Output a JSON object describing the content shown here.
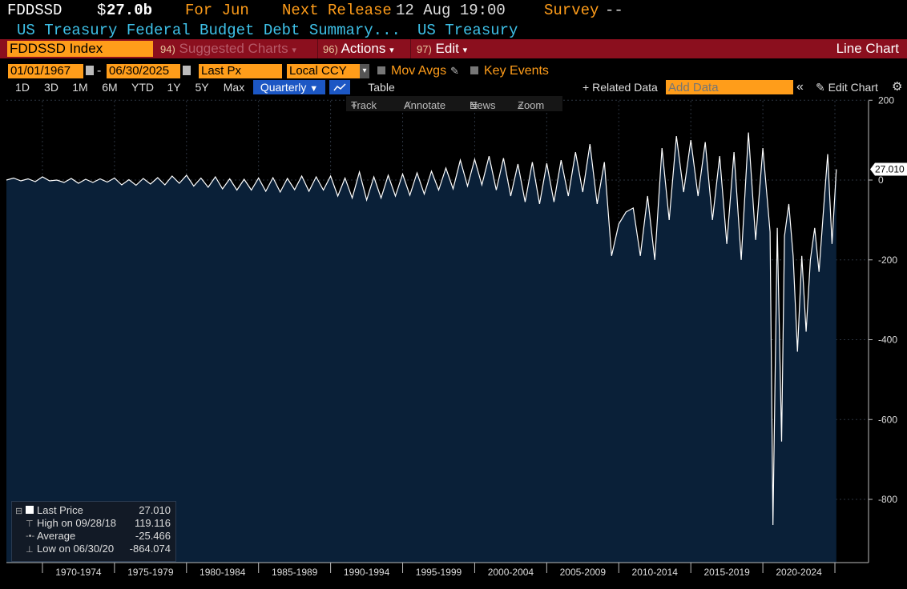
{
  "header": {
    "ticker": "FDDSSD",
    "price_dollar": "$",
    "price_value": "27.0b",
    "period": "For Jun",
    "next_release_label": "Next Release",
    "next_release_value": "12 Aug 19:00",
    "survey_label": "Survey",
    "survey_value": "--",
    "description": "US Treasury Federal Budget Debt Summary...",
    "source": "US Treasury"
  },
  "toolbar": {
    "security": "FDDSSD Index",
    "suggested_num": "94)",
    "suggested_label": "Suggested Charts",
    "actions_num": "96)",
    "actions_label": "Actions",
    "edit_num": "97)",
    "edit_label": "Edit",
    "chart_type": "Line Chart"
  },
  "controls": {
    "start_date": "01/01/1967",
    "date_sep": "-",
    "end_date": "06/30/2025",
    "field": "Last Px",
    "currency": "Local CCY",
    "mov_avgs": "Mov Avgs",
    "key_events": "Key Events"
  },
  "ranges": {
    "buttons": [
      "1D",
      "3D",
      "1M",
      "6M",
      "YTD",
      "1Y",
      "5Y",
      "Max"
    ],
    "frequency": "Quarterly",
    "table": "Table",
    "related": "Related Data",
    "add_data_placeholder": "Add Data",
    "edit_chart": "Edit Chart"
  },
  "chart_tools": {
    "track": "Track",
    "annotate": "Annotate",
    "news": "News",
    "zoom": "Zoom"
  },
  "legend": {
    "last_label": "Last Price",
    "last_value": "27.010",
    "high_label": "High on 09/28/18",
    "high_value": "119.116",
    "avg_label": "Average",
    "avg_value": "-25.466",
    "low_label": "Low on 06/30/20",
    "low_value": "-864.074"
  },
  "colors": {
    "background": "#000000",
    "plot_fill": "#0a2038",
    "line": "#ffffff",
    "accent_orange": "#ff9d1a",
    "header_cyan": "#3ec1e8",
    "toolbar_red": "#8b0f1e"
  },
  "chart_data": {
    "type": "area",
    "title": "",
    "xlabel": "",
    "ylabel": "",
    "x_start": 1967,
    "x_end": 2025.5,
    "ylim": [
      -950,
      200
    ],
    "yticks": [
      200,
      0,
      -200,
      -400,
      -600,
      -800
    ],
    "x_categories": [
      "1970-1974",
      "1975-1979",
      "1980-1984",
      "1985-1989",
      "1990-1994",
      "1995-1999",
      "2000-2004",
      "2005-2009",
      "2010-2014",
      "2015-2019",
      "2020-2024"
    ],
    "last_value_label": "27.010",
    "series": [
      {
        "points": [
          [
            1967.0,
            0
          ],
          [
            1967.5,
            5
          ],
          [
            1968.0,
            -2
          ],
          [
            1968.5,
            3
          ],
          [
            1969.0,
            -4
          ],
          [
            1969.5,
            8
          ],
          [
            1970.0,
            -2
          ],
          [
            1970.5,
            0
          ],
          [
            1971.0,
            -6
          ],
          [
            1971.5,
            4
          ],
          [
            1972.0,
            -8
          ],
          [
            1972.5,
            2
          ],
          [
            1973.0,
            -6
          ],
          [
            1973.5,
            3
          ],
          [
            1974.0,
            -5
          ],
          [
            1974.5,
            5
          ],
          [
            1975.0,
            -12
          ],
          [
            1975.5,
            1
          ],
          [
            1976.0,
            -13
          ],
          [
            1976.5,
            4
          ],
          [
            1977.0,
            -10
          ],
          [
            1977.5,
            6
          ],
          [
            1978.0,
            -12
          ],
          [
            1978.5,
            10
          ],
          [
            1979.0,
            -8
          ],
          [
            1979.5,
            12
          ],
          [
            1980.0,
            -15
          ],
          [
            1980.5,
            5
          ],
          [
            1981.0,
            -18
          ],
          [
            1981.5,
            8
          ],
          [
            1982.0,
            -22
          ],
          [
            1982.5,
            3
          ],
          [
            1983.0,
            -25
          ],
          [
            1983.5,
            2
          ],
          [
            1984.0,
            -25
          ],
          [
            1984.5,
            5
          ],
          [
            1985.0,
            -28
          ],
          [
            1985.5,
            6
          ],
          [
            1986.0,
            -30
          ],
          [
            1986.5,
            4
          ],
          [
            1987.0,
            -24
          ],
          [
            1987.5,
            10
          ],
          [
            1988.0,
            -28
          ],
          [
            1988.5,
            8
          ],
          [
            1989.0,
            -25
          ],
          [
            1989.5,
            10
          ],
          [
            1990.0,
            -40
          ],
          [
            1990.5,
            5
          ],
          [
            1991.0,
            -45
          ],
          [
            1991.5,
            20
          ],
          [
            1992.0,
            -50
          ],
          [
            1992.5,
            8
          ],
          [
            1993.0,
            -45
          ],
          [
            1993.5,
            12
          ],
          [
            1994.0,
            -40
          ],
          [
            1994.5,
            15
          ],
          [
            1995.0,
            -38
          ],
          [
            1995.5,
            18
          ],
          [
            1996.0,
            -35
          ],
          [
            1996.5,
            22
          ],
          [
            1997.0,
            -25
          ],
          [
            1997.5,
            30
          ],
          [
            1998.0,
            -22
          ],
          [
            1998.5,
            50
          ],
          [
            1999.0,
            -15
          ],
          [
            1999.5,
            52
          ],
          [
            2000.0,
            -12
          ],
          [
            2000.5,
            60
          ],
          [
            2001.0,
            -25
          ],
          [
            2001.5,
            55
          ],
          [
            2002.0,
            -40
          ],
          [
            2002.5,
            40
          ],
          [
            2003.0,
            -55
          ],
          [
            2003.5,
            45
          ],
          [
            2004.0,
            -60
          ],
          [
            2004.5,
            42
          ],
          [
            2005.0,
            -55
          ],
          [
            2005.5,
            50
          ],
          [
            2006.0,
            -40
          ],
          [
            2006.5,
            70
          ],
          [
            2007.0,
            -30
          ],
          [
            2007.5,
            90
          ],
          [
            2008.0,
            -60
          ],
          [
            2008.5,
            45
          ],
          [
            2009.0,
            -190
          ],
          [
            2009.5,
            -110
          ],
          [
            2010.0,
            -80
          ],
          [
            2010.5,
            -70
          ],
          [
            2011.0,
            -190
          ],
          [
            2011.5,
            -40
          ],
          [
            2012.0,
            -200
          ],
          [
            2012.5,
            80
          ],
          [
            2013.0,
            -100
          ],
          [
            2013.5,
            110
          ],
          [
            2014.0,
            -30
          ],
          [
            2014.5,
            100
          ],
          [
            2015.0,
            -40
          ],
          [
            2015.5,
            95
          ],
          [
            2016.0,
            -100
          ],
          [
            2016.5,
            60
          ],
          [
            2017.0,
            -160
          ],
          [
            2017.5,
            70
          ],
          [
            2018.0,
            -200
          ],
          [
            2018.5,
            119.116
          ],
          [
            2019.0,
            -150
          ],
          [
            2019.5,
            80
          ],
          [
            2020.0,
            -130
          ],
          [
            2020.2,
            -864.074
          ],
          [
            2020.5,
            -120
          ],
          [
            2020.8,
            -655
          ],
          [
            2021.0,
            -140
          ],
          [
            2021.3,
            -60
          ],
          [
            2021.6,
            -190
          ],
          [
            2021.9,
            -430
          ],
          [
            2022.2,
            -190
          ],
          [
            2022.5,
            -380
          ],
          [
            2022.8,
            -200
          ],
          [
            2023.1,
            -120
          ],
          [
            2023.4,
            -230
          ],
          [
            2023.7,
            -80
          ],
          [
            2024.0,
            65
          ],
          [
            2024.3,
            -160
          ],
          [
            2024.6,
            27.01
          ]
        ]
      }
    ]
  }
}
